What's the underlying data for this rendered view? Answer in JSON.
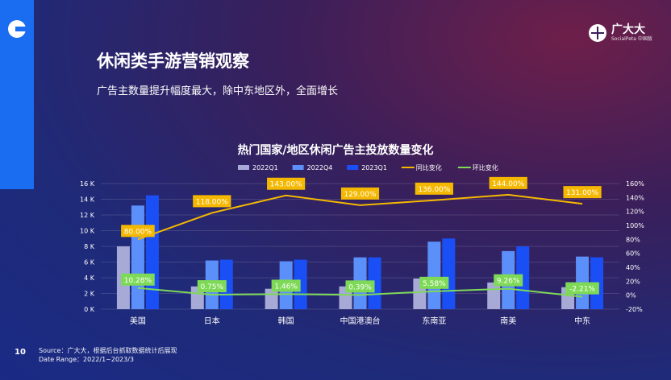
{
  "page": {
    "title": "休闲类手游营销观察",
    "subtitle": "广告主数量提升幅度最大，除中东地区外，全面增长",
    "page_number": "10",
    "source_line1": "Source：广大大，根据后台抓取数据统计后展现",
    "source_line2": "Date Range：2022/1~2023/3",
    "brand_name": "广大大",
    "brand_sub": "SocialPeta 中国版"
  },
  "colors": {
    "q1_2022": "#a7a9d6",
    "q4_2022": "#5b8ff9",
    "q1_2023": "#1a4ff5",
    "yoy": "#f5b800",
    "qoq": "#7ed957"
  },
  "chart_data": {
    "type": "bar",
    "title": "热门国家/地区休闲广告主投放数量变化",
    "categories": [
      "美国",
      "日本",
      "韩国",
      "中国港澳台",
      "东南亚",
      "南美",
      "中东"
    ],
    "series": [
      {
        "name": "2022Q1",
        "type": "bar",
        "axis": "left",
        "values": [
          8000,
          2900,
          2600,
          2900,
          3900,
          3400,
          2800
        ]
      },
      {
        "name": "2022Q4",
        "type": "bar",
        "axis": "left",
        "values": [
          13200,
          6200,
          6100,
          6600,
          8600,
          7400,
          6700
        ]
      },
      {
        "name": "2023Q1",
        "type": "bar",
        "axis": "left",
        "values": [
          14500,
          6300,
          6300,
          6600,
          9000,
          8000,
          6600
        ]
      },
      {
        "name": "同比变化",
        "type": "line",
        "axis": "right",
        "values": [
          80,
          118,
          143,
          129,
          136,
          144,
          131
        ],
        "labels": [
          "80.00%",
          "118.00%",
          "143.00%",
          "129.00%",
          "136.00%",
          "144.00%",
          "131.00%"
        ]
      },
      {
        "name": "环比变化",
        "type": "line",
        "axis": "right",
        "values": [
          10.28,
          0.75,
          1.46,
          0.39,
          5.58,
          9.26,
          -2.21
        ],
        "labels": [
          "10.28%",
          "0.75%",
          "1.46%",
          "0.39%",
          "5.58%",
          "9.26%",
          "-2.21%"
        ]
      }
    ],
    "left_axis": {
      "min": 0,
      "max": 16000,
      "ticks": [
        "0 K",
        "2 K",
        "4 K",
        "6 K",
        "8 K",
        "10 K",
        "12 K",
        "14 K",
        "16 K"
      ]
    },
    "right_axis": {
      "min": -20,
      "max": 160,
      "ticks": [
        "-20%",
        "0%",
        "20%",
        "40%",
        "60%",
        "80%",
        "100%",
        "120%",
        "140%",
        "160%"
      ]
    },
    "legend_position": "top",
    "grid": true
  }
}
